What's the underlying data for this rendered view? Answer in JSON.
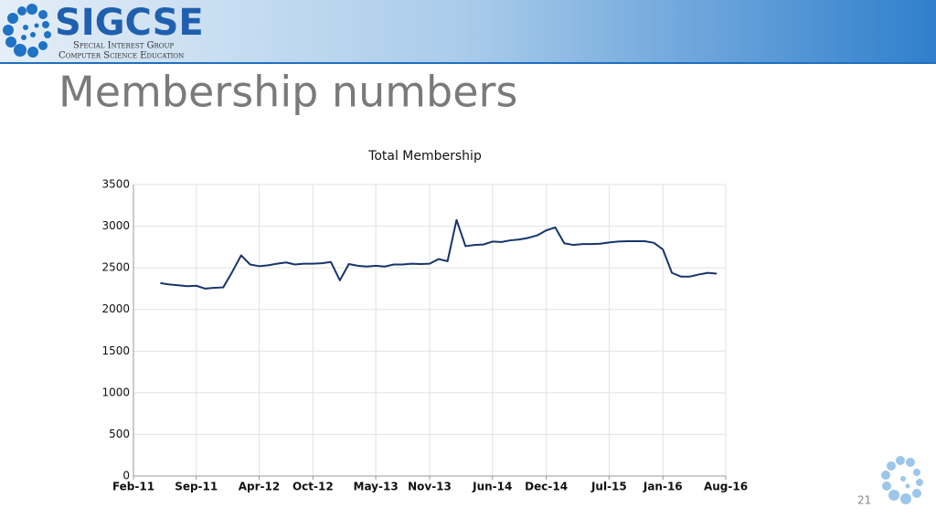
{
  "header": {
    "logo": "SIGCSE",
    "line1": "Special Interest Group",
    "line2": "Computer Science Education"
  },
  "title": "Membership numbers",
  "slide_number": "21",
  "chart_data": {
    "type": "line",
    "title": "Total Membership",
    "x": [
      "2011-05",
      "2011-06",
      "2011-07",
      "2011-08",
      "2011-09",
      "2011-10",
      "2011-11",
      "2011-12",
      "2012-01",
      "2012-02",
      "2012-03",
      "2012-04",
      "2012-05",
      "2012-06",
      "2012-07",
      "2012-08",
      "2012-09",
      "2012-10",
      "2012-11",
      "2012-12",
      "2013-01",
      "2013-02",
      "2013-03",
      "2013-04",
      "2013-05",
      "2013-06",
      "2013-07",
      "2013-08",
      "2013-09",
      "2013-10",
      "2013-11",
      "2013-12",
      "2014-01",
      "2014-02",
      "2014-03",
      "2014-04",
      "2014-05",
      "2014-06",
      "2014-07",
      "2014-08",
      "2014-09",
      "2014-10",
      "2014-11",
      "2014-12",
      "2015-01",
      "2015-02",
      "2015-03",
      "2015-04",
      "2015-05",
      "2015-06",
      "2015-07",
      "2015-08",
      "2015-09",
      "2015-10",
      "2015-11",
      "2015-12",
      "2016-01",
      "2016-02",
      "2016-03",
      "2016-04",
      "2016-05",
      "2016-06",
      "2016-07"
    ],
    "series": [
      {
        "name": "Total Membership",
        "color": "#17356b",
        "values": [
          2316,
          2300,
          2290,
          2280,
          2285,
          2250,
          2260,
          2265,
          2450,
          2650,
          2540,
          2520,
          2530,
          2550,
          2565,
          2540,
          2550,
          2550,
          2555,
          2570,
          2350,
          2545,
          2525,
          2515,
          2525,
          2515,
          2540,
          2540,
          2550,
          2545,
          2550,
          2605,
          2580,
          3075,
          2760,
          2775,
          2780,
          2815,
          2810,
          2830,
          2840,
          2860,
          2890,
          2950,
          2985,
          2795,
          2775,
          2785,
          2785,
          2790,
          2805,
          2815,
          2820,
          2820,
          2820,
          2800,
          2720,
          2440,
          2395,
          2395,
          2420,
          2440,
          2430
        ]
      }
    ],
    "xlim": [
      "2011-02",
      "2016-08"
    ],
    "xticks": [
      {
        "value": "2011-02",
        "label": "Feb-11"
      },
      {
        "value": "2011-09",
        "label": "Sep-11"
      },
      {
        "value": "2012-04",
        "label": "Apr-12"
      },
      {
        "value": "2012-10",
        "label": "Oct-12"
      },
      {
        "value": "2013-05",
        "label": "May-13"
      },
      {
        "value": "2013-11",
        "label": "Nov-13"
      },
      {
        "value": "2014-06",
        "label": "Jun-14"
      },
      {
        "value": "2014-12",
        "label": "Dec-14"
      },
      {
        "value": "2015-07",
        "label": "Jul-15"
      },
      {
        "value": "2016-01",
        "label": "Jan-16"
      },
      {
        "value": "2016-08",
        "label": "Aug-16"
      }
    ],
    "ylim": [
      0,
      3500
    ],
    "yticks": [
      0,
      500,
      1000,
      1500,
      2000,
      2500,
      3000,
      3500
    ],
    "grid": true
  }
}
